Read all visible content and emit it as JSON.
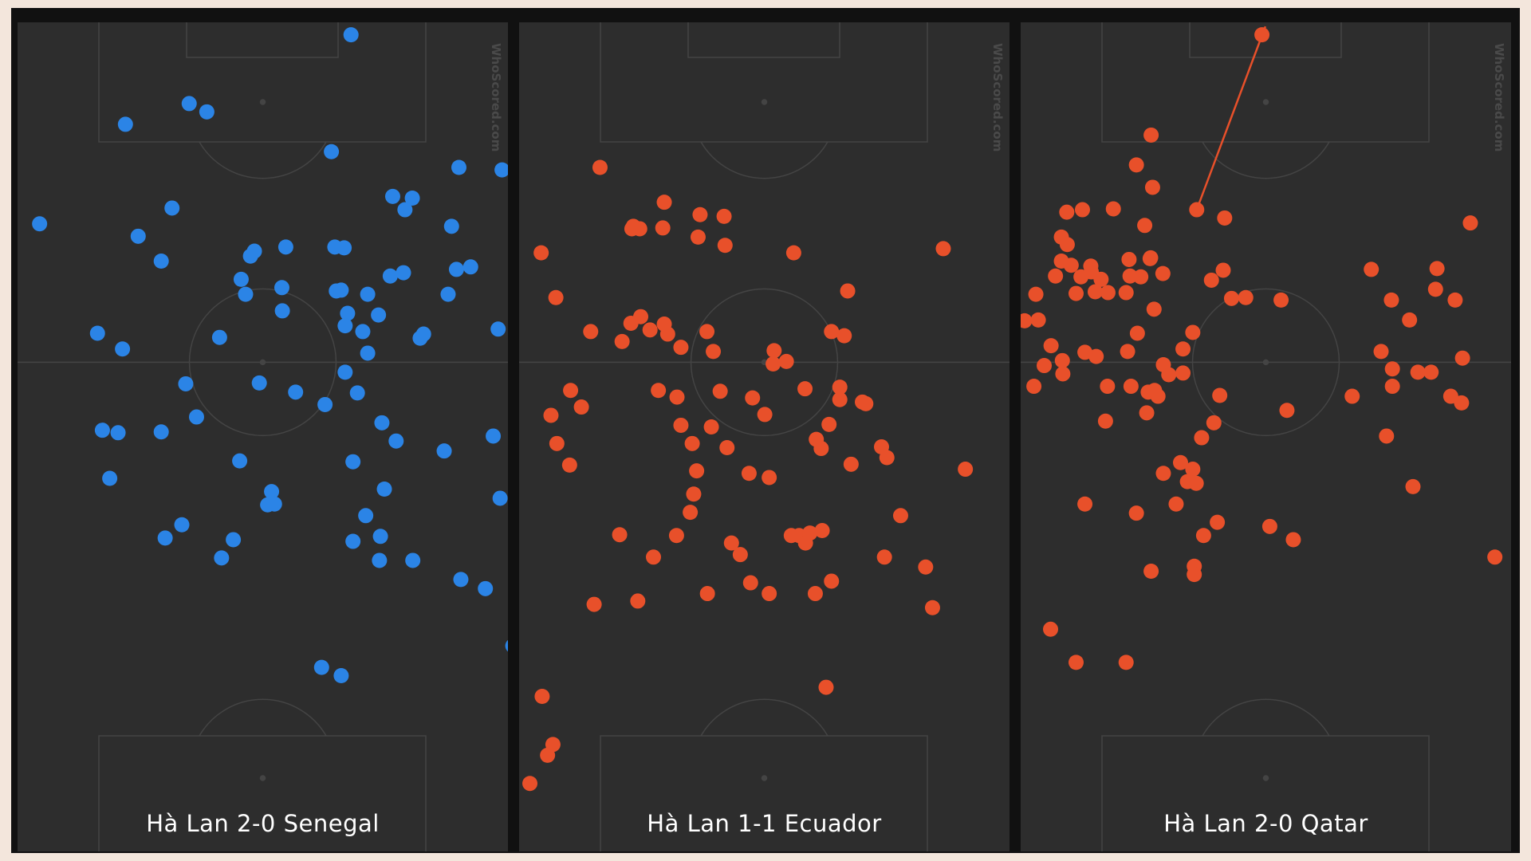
{
  "watermark": "WhoScored.com",
  "colors": {
    "background": "#f3e6dc",
    "pitch": "#2d2d2d",
    "lines": "#444444",
    "blue": "#2b84e6",
    "orange": "#e8502a"
  },
  "chart_data": [
    {
      "type": "scatter",
      "title": "Hà Lan 2-0 Senegal",
      "color": "#2b84e6",
      "xlim": [
        0,
        100
      ],
      "ylim": [
        0,
        100
      ],
      "points": [
        [
          68,
          1.5
        ],
        [
          35,
          9.8
        ],
        [
          38.6,
          10.8
        ],
        [
          22,
          12.3
        ],
        [
          64,
          15.6
        ],
        [
          4.5,
          24.3
        ],
        [
          31.5,
          22.4
        ],
        [
          24.6,
          25.8
        ],
        [
          29.3,
          28.8
        ],
        [
          90,
          17.5
        ],
        [
          98.8,
          17.8
        ],
        [
          76.5,
          21
        ],
        [
          80.5,
          21.2
        ],
        [
          79,
          22.6
        ],
        [
          88.5,
          24.6
        ],
        [
          54.7,
          27.1
        ],
        [
          48.3,
          27.6
        ],
        [
          47.5,
          28.2
        ],
        [
          64.7,
          27.1
        ],
        [
          66.6,
          27.2
        ],
        [
          45.6,
          31
        ],
        [
          46.5,
          32.8
        ],
        [
          53.9,
          32
        ],
        [
          76,
          30.6
        ],
        [
          78.7,
          30.2
        ],
        [
          89.5,
          29.8
        ],
        [
          92.4,
          29.5
        ],
        [
          65,
          32.4
        ],
        [
          66,
          32.3
        ],
        [
          71.4,
          32.8
        ],
        [
          87.8,
          32.8
        ],
        [
          54,
          34.8
        ],
        [
          67.3,
          35.1
        ],
        [
          73.6,
          35.3
        ],
        [
          66.8,
          36.6
        ],
        [
          70.4,
          37.3
        ],
        [
          16.3,
          37.5
        ],
        [
          41.2,
          38
        ],
        [
          21.4,
          39.4
        ],
        [
          82.1,
          38.1
        ],
        [
          82.8,
          37.6
        ],
        [
          71.4,
          39.9
        ],
        [
          98,
          37
        ],
        [
          66.8,
          42.2
        ],
        [
          34.3,
          43.6
        ],
        [
          49.3,
          43.5
        ],
        [
          56.7,
          44.6
        ],
        [
          69.3,
          44.7
        ],
        [
          62.7,
          46.1
        ],
        [
          36.5,
          47.6
        ],
        [
          17.3,
          49.2
        ],
        [
          20.5,
          49.5
        ],
        [
          29.3,
          49.4
        ],
        [
          74.3,
          48.3
        ],
        [
          77.2,
          50.5
        ],
        [
          87,
          51.7
        ],
        [
          97,
          49.9
        ],
        [
          45.3,
          52.9
        ],
        [
          68.4,
          53
        ],
        [
          18.8,
          55
        ],
        [
          74.8,
          56.3
        ],
        [
          98.4,
          57.4
        ],
        [
          51.8,
          56.6
        ],
        [
          51,
          58.2
        ],
        [
          52.4,
          58.1
        ],
        [
          71,
          59.5
        ],
        [
          33.5,
          60.6
        ],
        [
          30.1,
          62.2
        ],
        [
          44,
          62.4
        ],
        [
          68.4,
          62.6
        ],
        [
          74,
          62
        ],
        [
          41.6,
          64.6
        ],
        [
          73.8,
          64.9
        ],
        [
          80.6,
          64.9
        ],
        [
          90.4,
          67.2
        ],
        [
          95.4,
          68.3
        ],
        [
          62,
          77.8
        ],
        [
          66,
          78.8
        ],
        [
          101,
          75.2
        ]
      ]
    },
    {
      "type": "scatter",
      "title": "Hà Lan 1-1 Ecuador",
      "color": "#e8502a",
      "xlim": [
        0,
        100
      ],
      "ylim": [
        0,
        100
      ],
      "points": [
        [
          16.5,
          17.5
        ],
        [
          29.6,
          21.7
        ],
        [
          23.3,
          24.6
        ],
        [
          23,
          24.9
        ],
        [
          24.6,
          24.9
        ],
        [
          29.3,
          24.8
        ],
        [
          36.9,
          23.2
        ],
        [
          41.8,
          23.4
        ],
        [
          36.5,
          25.9
        ],
        [
          42,
          26.9
        ],
        [
          56,
          27.8
        ],
        [
          86.5,
          27.3
        ],
        [
          4.5,
          27.8
        ],
        [
          7.5,
          33.2
        ],
        [
          67,
          32.4
        ],
        [
          24.8,
          35.5
        ],
        [
          22.8,
          36.3
        ],
        [
          26.7,
          37.1
        ],
        [
          29.6,
          36.4
        ],
        [
          30.3,
          37.6
        ],
        [
          14.6,
          37.3
        ],
        [
          21,
          38.5
        ],
        [
          33,
          39.2
        ],
        [
          38.3,
          37.3
        ],
        [
          39.6,
          39.7
        ],
        [
          52,
          39.6
        ],
        [
          54.5,
          40.9
        ],
        [
          51.8,
          41.2
        ],
        [
          63.7,
          37.3
        ],
        [
          66.3,
          37.8
        ],
        [
          10.5,
          44.4
        ],
        [
          28.4,
          44.4
        ],
        [
          32.2,
          45.2
        ],
        [
          41,
          44.5
        ],
        [
          47.6,
          45.3
        ],
        [
          58.3,
          44.2
        ],
        [
          65.4,
          44
        ],
        [
          65.4,
          45.5
        ],
        [
          70,
          45.8
        ],
        [
          70.7,
          46
        ],
        [
          12.7,
          46.4
        ],
        [
          6.5,
          47.4
        ],
        [
          33,
          48.6
        ],
        [
          39.2,
          48.8
        ],
        [
          50.1,
          47.3
        ],
        [
          63.2,
          48.5
        ],
        [
          7.7,
          50.8
        ],
        [
          35.3,
          50.8
        ],
        [
          42.4,
          51.3
        ],
        [
          60.6,
          50.3
        ],
        [
          61.6,
          51.4
        ],
        [
          73.9,
          51.2
        ],
        [
          75,
          52.5
        ],
        [
          10.3,
          53.4
        ],
        [
          36.2,
          54.1
        ],
        [
          46.9,
          54.4
        ],
        [
          51,
          54.9
        ],
        [
          67.7,
          53.3
        ],
        [
          91,
          53.9
        ],
        [
          35.6,
          56.9
        ],
        [
          34.9,
          59.1
        ],
        [
          77.8,
          59.5
        ],
        [
          20.5,
          61.8
        ],
        [
          32.1,
          61.9
        ],
        [
          55.5,
          61.9
        ],
        [
          57.1,
          61.9
        ],
        [
          59.3,
          61.6
        ],
        [
          58.4,
          62.8
        ],
        [
          61.8,
          61.3
        ],
        [
          43.3,
          62.8
        ],
        [
          45.1,
          64.2
        ],
        [
          27.4,
          64.5
        ],
        [
          74.5,
          64.5
        ],
        [
          82.9,
          65.7
        ],
        [
          63.7,
          67.4
        ],
        [
          47.2,
          67.6
        ],
        [
          38.4,
          68.9
        ],
        [
          51,
          68.9
        ],
        [
          60.4,
          68.9
        ],
        [
          15.3,
          70.2
        ],
        [
          24.2,
          69.8
        ],
        [
          84.3,
          70.6
        ],
        [
          62.6,
          80.2
        ],
        [
          4.7,
          81.3
        ],
        [
          6.9,
          87.1
        ],
        [
          5.8,
          88.4
        ],
        [
          2.2,
          91.8
        ]
      ]
    },
    {
      "type": "scatter",
      "title": "Hà Lan 2-0 Qatar",
      "color": "#e8502a",
      "xlim": [
        0,
        100
      ],
      "ylim": [
        0,
        100
      ],
      "arrow": {
        "from": [
          35.9,
          22.6
        ],
        "to": [
          49.9,
          0.5
        ]
      },
      "points": [
        [
          49.2,
          1.5
        ],
        [
          26.6,
          13.6
        ],
        [
          23.6,
          17.2
        ],
        [
          26.9,
          19.9
        ],
        [
          9.4,
          22.9
        ],
        [
          12.6,
          22.6
        ],
        [
          18.9,
          22.5
        ],
        [
          35.9,
          22.6
        ],
        [
          41.6,
          23.6
        ],
        [
          25.3,
          24.5
        ],
        [
          91.7,
          24.2
        ],
        [
          8.3,
          25.9
        ],
        [
          9.5,
          26.8
        ],
        [
          26.5,
          28.4
        ],
        [
          14.3,
          29.4
        ],
        [
          8.3,
          28.8
        ],
        [
          10.3,
          29.3
        ],
        [
          22.1,
          28.6
        ],
        [
          26.4,
          28.5
        ],
        [
          14.4,
          30.1
        ],
        [
          29,
          30.3
        ],
        [
          41.3,
          29.9
        ],
        [
          7.1,
          30.6
        ],
        [
          12.3,
          30.7
        ],
        [
          16.4,
          31
        ],
        [
          22.3,
          30.6
        ],
        [
          24.5,
          30.7
        ],
        [
          38.9,
          31.1
        ],
        [
          71.5,
          29.8
        ],
        [
          84.9,
          29.7
        ],
        [
          84.6,
          32.2
        ],
        [
          3.1,
          32.8
        ],
        [
          11.3,
          32.7
        ],
        [
          15.2,
          32.5
        ],
        [
          17.8,
          32.6
        ],
        [
          21.5,
          32.6
        ],
        [
          43,
          33.3
        ],
        [
          45.9,
          33.2
        ],
        [
          53.1,
          33.5
        ],
        [
          88.6,
          33.5
        ],
        [
          75.6,
          33.5
        ],
        [
          27.2,
          34.6
        ],
        [
          79.3,
          35.9
        ],
        [
          0.8,
          36
        ],
        [
          3.6,
          35.9
        ],
        [
          23.8,
          37.5
        ],
        [
          35.1,
          37.4
        ],
        [
          6.2,
          39
        ],
        [
          13.1,
          39.8
        ],
        [
          15.4,
          40.3
        ],
        [
          21.8,
          39.7
        ],
        [
          33.1,
          39.4
        ],
        [
          4.8,
          41.4
        ],
        [
          8.5,
          40.8
        ],
        [
          8.6,
          42.4
        ],
        [
          30.2,
          42.5
        ],
        [
          29.1,
          41.3
        ],
        [
          33.1,
          42.3
        ],
        [
          73.5,
          39.7
        ],
        [
          90.1,
          40.5
        ],
        [
          75.8,
          41.8
        ],
        [
          81,
          42.2
        ],
        [
          83.7,
          42.2
        ],
        [
          2.7,
          43.9
        ],
        [
          17.7,
          43.9
        ],
        [
          22.5,
          43.9
        ],
        [
          26,
          44.6
        ],
        [
          28,
          45.1
        ],
        [
          27.3,
          44.4
        ],
        [
          40.6,
          45
        ],
        [
          67.6,
          45.1
        ],
        [
          89.9,
          45.9
        ],
        [
          75.8,
          43.9
        ],
        [
          87.7,
          45.1
        ],
        [
          25.7,
          47.1
        ],
        [
          17.3,
          48.1
        ],
        [
          39.4,
          48.3
        ],
        [
          36.9,
          50.1
        ],
        [
          32.6,
          53.1
        ],
        [
          54.3,
          46.8
        ],
        [
          74.6,
          49.9
        ],
        [
          35.1,
          53.9
        ],
        [
          29.1,
          54.4
        ],
        [
          34,
          55.4
        ],
        [
          35.8,
          55.6
        ],
        [
          13.1,
          58.1
        ],
        [
          23.6,
          59.2
        ],
        [
          40.1,
          60.3
        ],
        [
          31.7,
          58.1
        ],
        [
          80,
          56
        ],
        [
          37.3,
          61.9
        ],
        [
          50.8,
          60.8
        ],
        [
          55.6,
          62.4
        ],
        [
          96.7,
          64.5
        ],
        [
          26.6,
          66.2
        ],
        [
          35.4,
          65.6
        ],
        [
          35.4,
          66.6
        ],
        [
          6.1,
          73.2
        ],
        [
          11.3,
          77.2
        ],
        [
          21.5,
          77.2
        ]
      ]
    }
  ]
}
